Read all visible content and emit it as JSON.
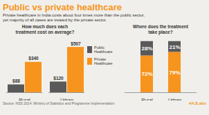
{
  "title": "Public vs private healthcare",
  "subtitle": "Private healthcare in India costs about four times more than the public sector,\nyet majority of all cases are treated by the private sector.",
  "annotations": [
    "Source: NSS 2014, Ministry of Statistics and Programme Implementation",
    "#AJLabs"
  ],
  "chart_data": [
    {
      "type": "bar",
      "title": "How much does each\ntreatment cost on average?",
      "categories": [
        "Rural",
        "Urban"
      ],
      "series": [
        {
          "name": "Public\nHealthcare",
          "color": "#595959",
          "values": [
            88,
            120
          ],
          "value_labels": [
            "$88",
            "$120"
          ]
        },
        {
          "name": "Private\nHealthcare",
          "color": "#F7941D",
          "values": [
            340,
            507
          ],
          "value_labels": [
            "$340",
            "$507"
          ]
        }
      ],
      "ylim": [
        0,
        570
      ],
      "data_labels": true,
      "tick_labels": "x",
      "grid": false,
      "legend": "right"
    },
    {
      "type": "bar",
      "title": "Where does the treatment\ntake place?",
      "categories": [
        "Rural",
        "Urban"
      ],
      "series": [
        {
          "name": "Private\nHealthcare",
          "color": "#F7941D",
          "values": [
            72,
            79
          ],
          "value_labels": [
            "72%",
            "79%"
          ]
        },
        {
          "name": "Public\nHealthcare",
          "color": "#595959",
          "values": [
            28,
            21
          ],
          "value_labels": [
            "28%",
            "21%"
          ]
        }
      ],
      "ylim": [
        0,
        105
      ],
      "stacked": true,
      "data_labels": true,
      "tick_labels": "x",
      "grid": false
    }
  ]
}
